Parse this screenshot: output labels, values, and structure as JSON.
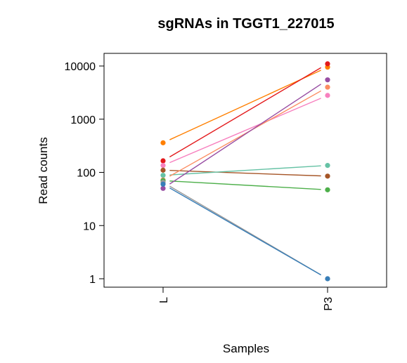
{
  "chart_data": {
    "type": "line",
    "title": "sgRNAs in TGGT1_227015",
    "xlabel": "Samples",
    "ylabel": "Read counts",
    "categories": [
      "L",
      "P3"
    ],
    "y_scale": "log",
    "ylim": [
      1,
      10000
    ],
    "y_ticks": [
      "1",
      "10",
      "100",
      "1000",
      "10000"
    ],
    "grid": false,
    "series": [
      {
        "color": "#ff7f00",
        "values": [
          360,
          9500
        ]
      },
      {
        "color": "#e31a1c",
        "values": [
          165,
          11000
        ]
      },
      {
        "color": "#f781bf",
        "values": [
          135,
          2800
        ]
      },
      {
        "color": "#a65628",
        "values": [
          110,
          85
        ]
      },
      {
        "color": "#66c2a5",
        "values": [
          88,
          135
        ]
      },
      {
        "color": "#fc8d62",
        "values": [
          72,
          4000
        ]
      },
      {
        "color": "#4daf4a",
        "values": [
          70,
          47
        ]
      },
      {
        "color": "#984ea3",
        "values": [
          50,
          5500
        ]
      },
      {
        "color": "#999999",
        "values": [
          65,
          1
        ]
      },
      {
        "color": "#377eb8",
        "values": [
          60,
          1
        ]
      }
    ]
  }
}
